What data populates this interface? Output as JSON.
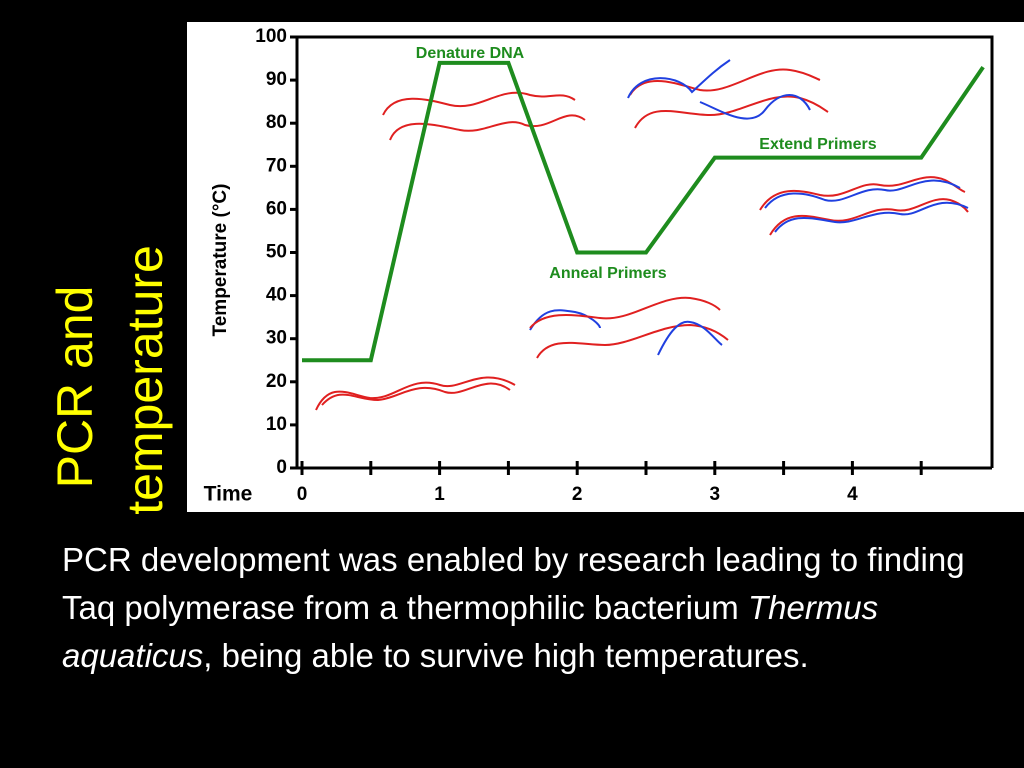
{
  "slide": {
    "title_lines": [
      "PCR and",
      "temperature"
    ],
    "body": [
      "PCR development was enabled by research leading to finding Taq polymerase from a thermophilic bacterium ",
      "Thermus aquaticus",
      ", being able to survive high temperatures."
    ]
  },
  "chart_data": {
    "type": "line",
    "xlabel": "Time",
    "ylabel": "Temperature (°C)",
    "x": [
      0,
      0.5,
      1,
      1.5,
      2,
      2.5,
      3,
      4.5,
      4.95
    ],
    "series": [
      {
        "name": "Temperature",
        "color": "#1e8c1e",
        "values": [
          25,
          25,
          94,
          94,
          50,
          50,
          72,
          72,
          93
        ]
      }
    ],
    "xlim": [
      0,
      5
    ],
    "xticks": [
      0,
      1,
      2,
      3,
      4
    ],
    "xminor_ticks": [
      0.5,
      1.5,
      2.5,
      3.5,
      4.5
    ],
    "ylim": [
      0,
      100
    ],
    "yticks": [
      0,
      10,
      20,
      30,
      40,
      50,
      60,
      70,
      80,
      90,
      100
    ],
    "annotations": [
      "Denature DNA",
      "Anneal Primers",
      "Extend Primers"
    ]
  }
}
